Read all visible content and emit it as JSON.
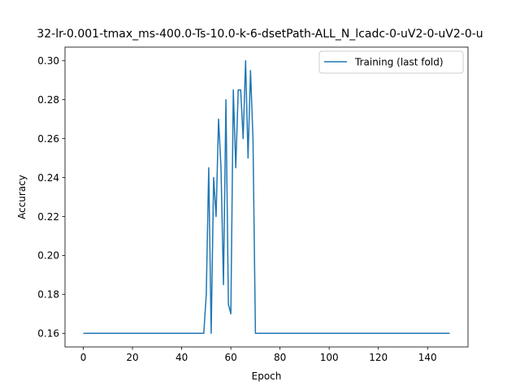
{
  "chart_data": {
    "type": "line",
    "title": "32-lr-0.001-tmax_ms-400.0-Ts-10.0-k-6-dsetPath-ALL_N_lcadc-0-uV2-0-uV2-0-u",
    "xlabel": "Epoch",
    "ylabel": "Accuracy",
    "xlim": [
      -7.45,
      156.45
    ],
    "ylim": [
      0.153,
      0.307
    ],
    "xticks": [
      0,
      20,
      40,
      60,
      80,
      100,
      120,
      140
    ],
    "yticks": [
      "0.16",
      "0.18",
      "0.20",
      "0.22",
      "0.24",
      "0.26",
      "0.28",
      "0.30"
    ],
    "legend_position": "top-right",
    "series": [
      {
        "name": "Training (last fold)",
        "color": "#1f77b4",
        "points": [
          [
            0,
            0.16
          ],
          [
            49,
            0.16
          ],
          [
            50,
            0.18
          ],
          [
            51,
            0.245
          ],
          [
            52,
            0.16
          ],
          [
            53,
            0.24
          ],
          [
            54,
            0.22
          ],
          [
            55,
            0.27
          ],
          [
            56,
            0.245
          ],
          [
            57,
            0.185
          ],
          [
            58,
            0.28
          ],
          [
            59,
            0.175
          ],
          [
            60,
            0.17
          ],
          [
            61,
            0.285
          ],
          [
            62,
            0.245
          ],
          [
            63,
            0.285
          ],
          [
            64,
            0.285
          ],
          [
            65,
            0.26
          ],
          [
            66,
            0.3
          ],
          [
            67,
            0.25
          ],
          [
            68,
            0.295
          ],
          [
            69,
            0.26
          ],
          [
            70,
            0.16
          ],
          [
            149,
            0.16
          ]
        ]
      }
    ]
  }
}
